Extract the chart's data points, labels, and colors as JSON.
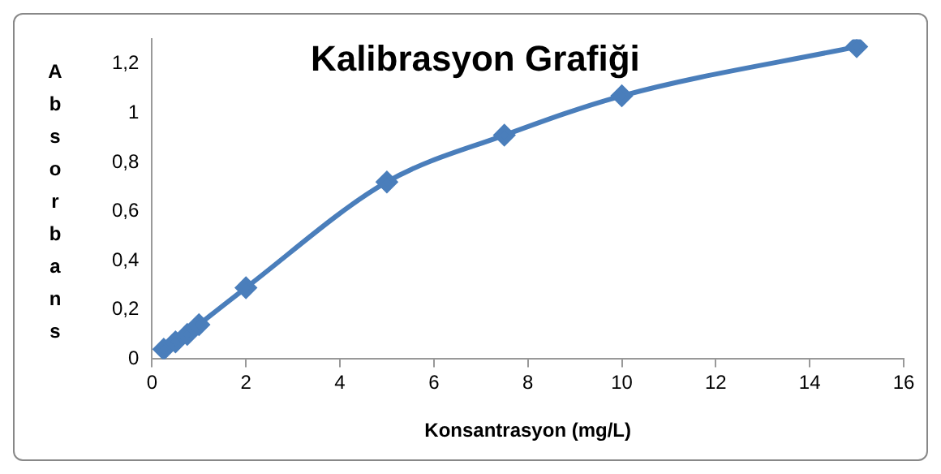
{
  "chart_data": {
    "type": "line",
    "title": "Kalibrasyon Grafiği",
    "xlabel": "Konsantrasyon (mg/L)",
    "ylabel": "Absorbans",
    "x": [
      0.25,
      0.5,
      0.75,
      1,
      2,
      5,
      7.5,
      10,
      15
    ],
    "series": [
      {
        "color": "#4a7ebb",
        "values": [
          0.04,
          0.07,
          0.1,
          0.14,
          0.29,
          0.72,
          0.91,
          1.07,
          1.27
        ]
      }
    ],
    "xlim": [
      0,
      16
    ],
    "xticks": [
      0,
      2,
      4,
      6,
      8,
      10,
      12,
      14,
      16
    ],
    "ylim": [
      0,
      1.3
    ],
    "yticks": [
      {
        "value": 0,
        "label": "0"
      },
      {
        "value": 0.2,
        "label": "0,2"
      },
      {
        "value": 0.4,
        "label": "0,4"
      },
      {
        "value": 0.6,
        "label": "0,6"
      },
      {
        "value": 0.8,
        "label": "0,8"
      },
      {
        "value": 1,
        "label": "1"
      },
      {
        "value": 1.2,
        "label": "1,2"
      }
    ],
    "grid": false,
    "legend": false,
    "marker": "diamond",
    "line_style": "solid"
  }
}
